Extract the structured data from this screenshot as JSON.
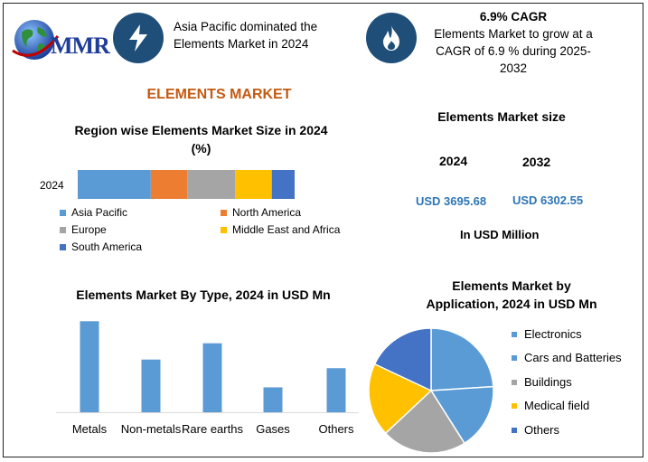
{
  "logo": {
    "text": "MMR"
  },
  "header": {
    "dominance_text": "Asia Pacific dominated the Elements Market in 2024",
    "dominance_line1": "Asia Pacific dominated the",
    "dominance_line2": "Elements Market in 2024",
    "cagr_title": "6.9% CAGR",
    "cagr_line1": "Elements Market to grow at a",
    "cagr_line2": "CAGR of 6.9 % during 2025-",
    "cagr_line3": "2032",
    "icon_left": "lightning-icon",
    "icon_right": "flame-icon"
  },
  "main_title": "ELEMENTS MARKET",
  "region": {
    "title_line1": "Region wise Elements Market Size in 2024",
    "title_line2": "(%)",
    "year_label": "2024"
  },
  "market_size": {
    "title": "Elements Market size",
    "year1": "2024",
    "year2": "2032",
    "value1": "USD 3695.68",
    "value2": "USD 6302.55",
    "unit": "In USD Million"
  },
  "type_chart": {
    "title": "Elements Market By Type, 2024 in USD Mn"
  },
  "app_chart": {
    "title_line1": "Elements Market by",
    "title_line2": "Application, 2024 in USD Mn"
  },
  "chart_data": [
    {
      "type": "bar",
      "orientation": "horizontal-stacked",
      "title": "Region wise Elements Market Size in 2024 (%)",
      "categories": [
        "2024"
      ],
      "series": [
        {
          "name": "Asia Pacific",
          "values": [
            32
          ],
          "color": "#5b9bd5"
        },
        {
          "name": "North America",
          "values": [
            16
          ],
          "color": "#ed7d31"
        },
        {
          "name": "Europe",
          "values": [
            21
          ],
          "color": "#a5a5a5"
        },
        {
          "name": "Middle East and Africa",
          "values": [
            16
          ],
          "color": "#ffc000"
        },
        {
          "name": "South America",
          "values": [
            10
          ],
          "color": "#4472c4"
        }
      ],
      "xlim": [
        0,
        95
      ],
      "legend": "bottom"
    },
    {
      "type": "bar",
      "title": "Elements Market By Type, 2024 in USD Mn",
      "categories": [
        "Metals",
        "Non-metals",
        "Rare earths",
        "Gases",
        "Others"
      ],
      "values": [
        95,
        55,
        72,
        26,
        46
      ],
      "color": "#5b9bd5",
      "ylim": [
        0,
        100
      ]
    },
    {
      "type": "pie",
      "title": "Elements Market by Application, 2024 in USD Mn",
      "labels": [
        "Electronics",
        "Cars and Batteries",
        "Buildings",
        "Medical field",
        "Others"
      ],
      "values": [
        24,
        17,
        22,
        19,
        18
      ],
      "colors": [
        "#5b9bd5",
        "#5b9bd5",
        "#a5a5a5",
        "#ffc000",
        "#4472c4"
      ],
      "legend": "right"
    }
  ]
}
